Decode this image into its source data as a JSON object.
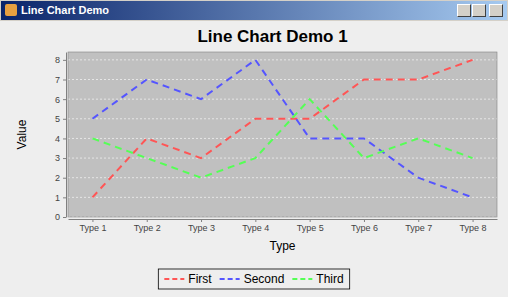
{
  "window": {
    "title": "Line Chart Demo"
  },
  "chart_data": {
    "type": "line",
    "title": "Line Chart Demo 1",
    "x_label": "Type",
    "y_label": "Value",
    "categories": [
      "Type 1",
      "Type 2",
      "Type 3",
      "Type 4",
      "Type 5",
      "Type 6",
      "Type 7",
      "Type 8"
    ],
    "series": [
      {
        "name": "First",
        "color": "#ff5555",
        "values": [
          1,
          4,
          3,
          5,
          5,
          7,
          7,
          8
        ]
      },
      {
        "name": "Second",
        "color": "#5555ff",
        "values": [
          5,
          7,
          6,
          8,
          4,
          4,
          2,
          1
        ]
      },
      {
        "name": "Third",
        "color": "#55ff55",
        "values": [
          4,
          3,
          2,
          3,
          6,
          3,
          4,
          3
        ]
      }
    ],
    "ylim": [
      0,
      8.4
    ],
    "yticks": [
      0,
      1,
      2,
      3,
      4,
      5,
      6,
      7,
      8
    ],
    "grid": true,
    "legend": "bottom",
    "line_style": "dashed"
  }
}
